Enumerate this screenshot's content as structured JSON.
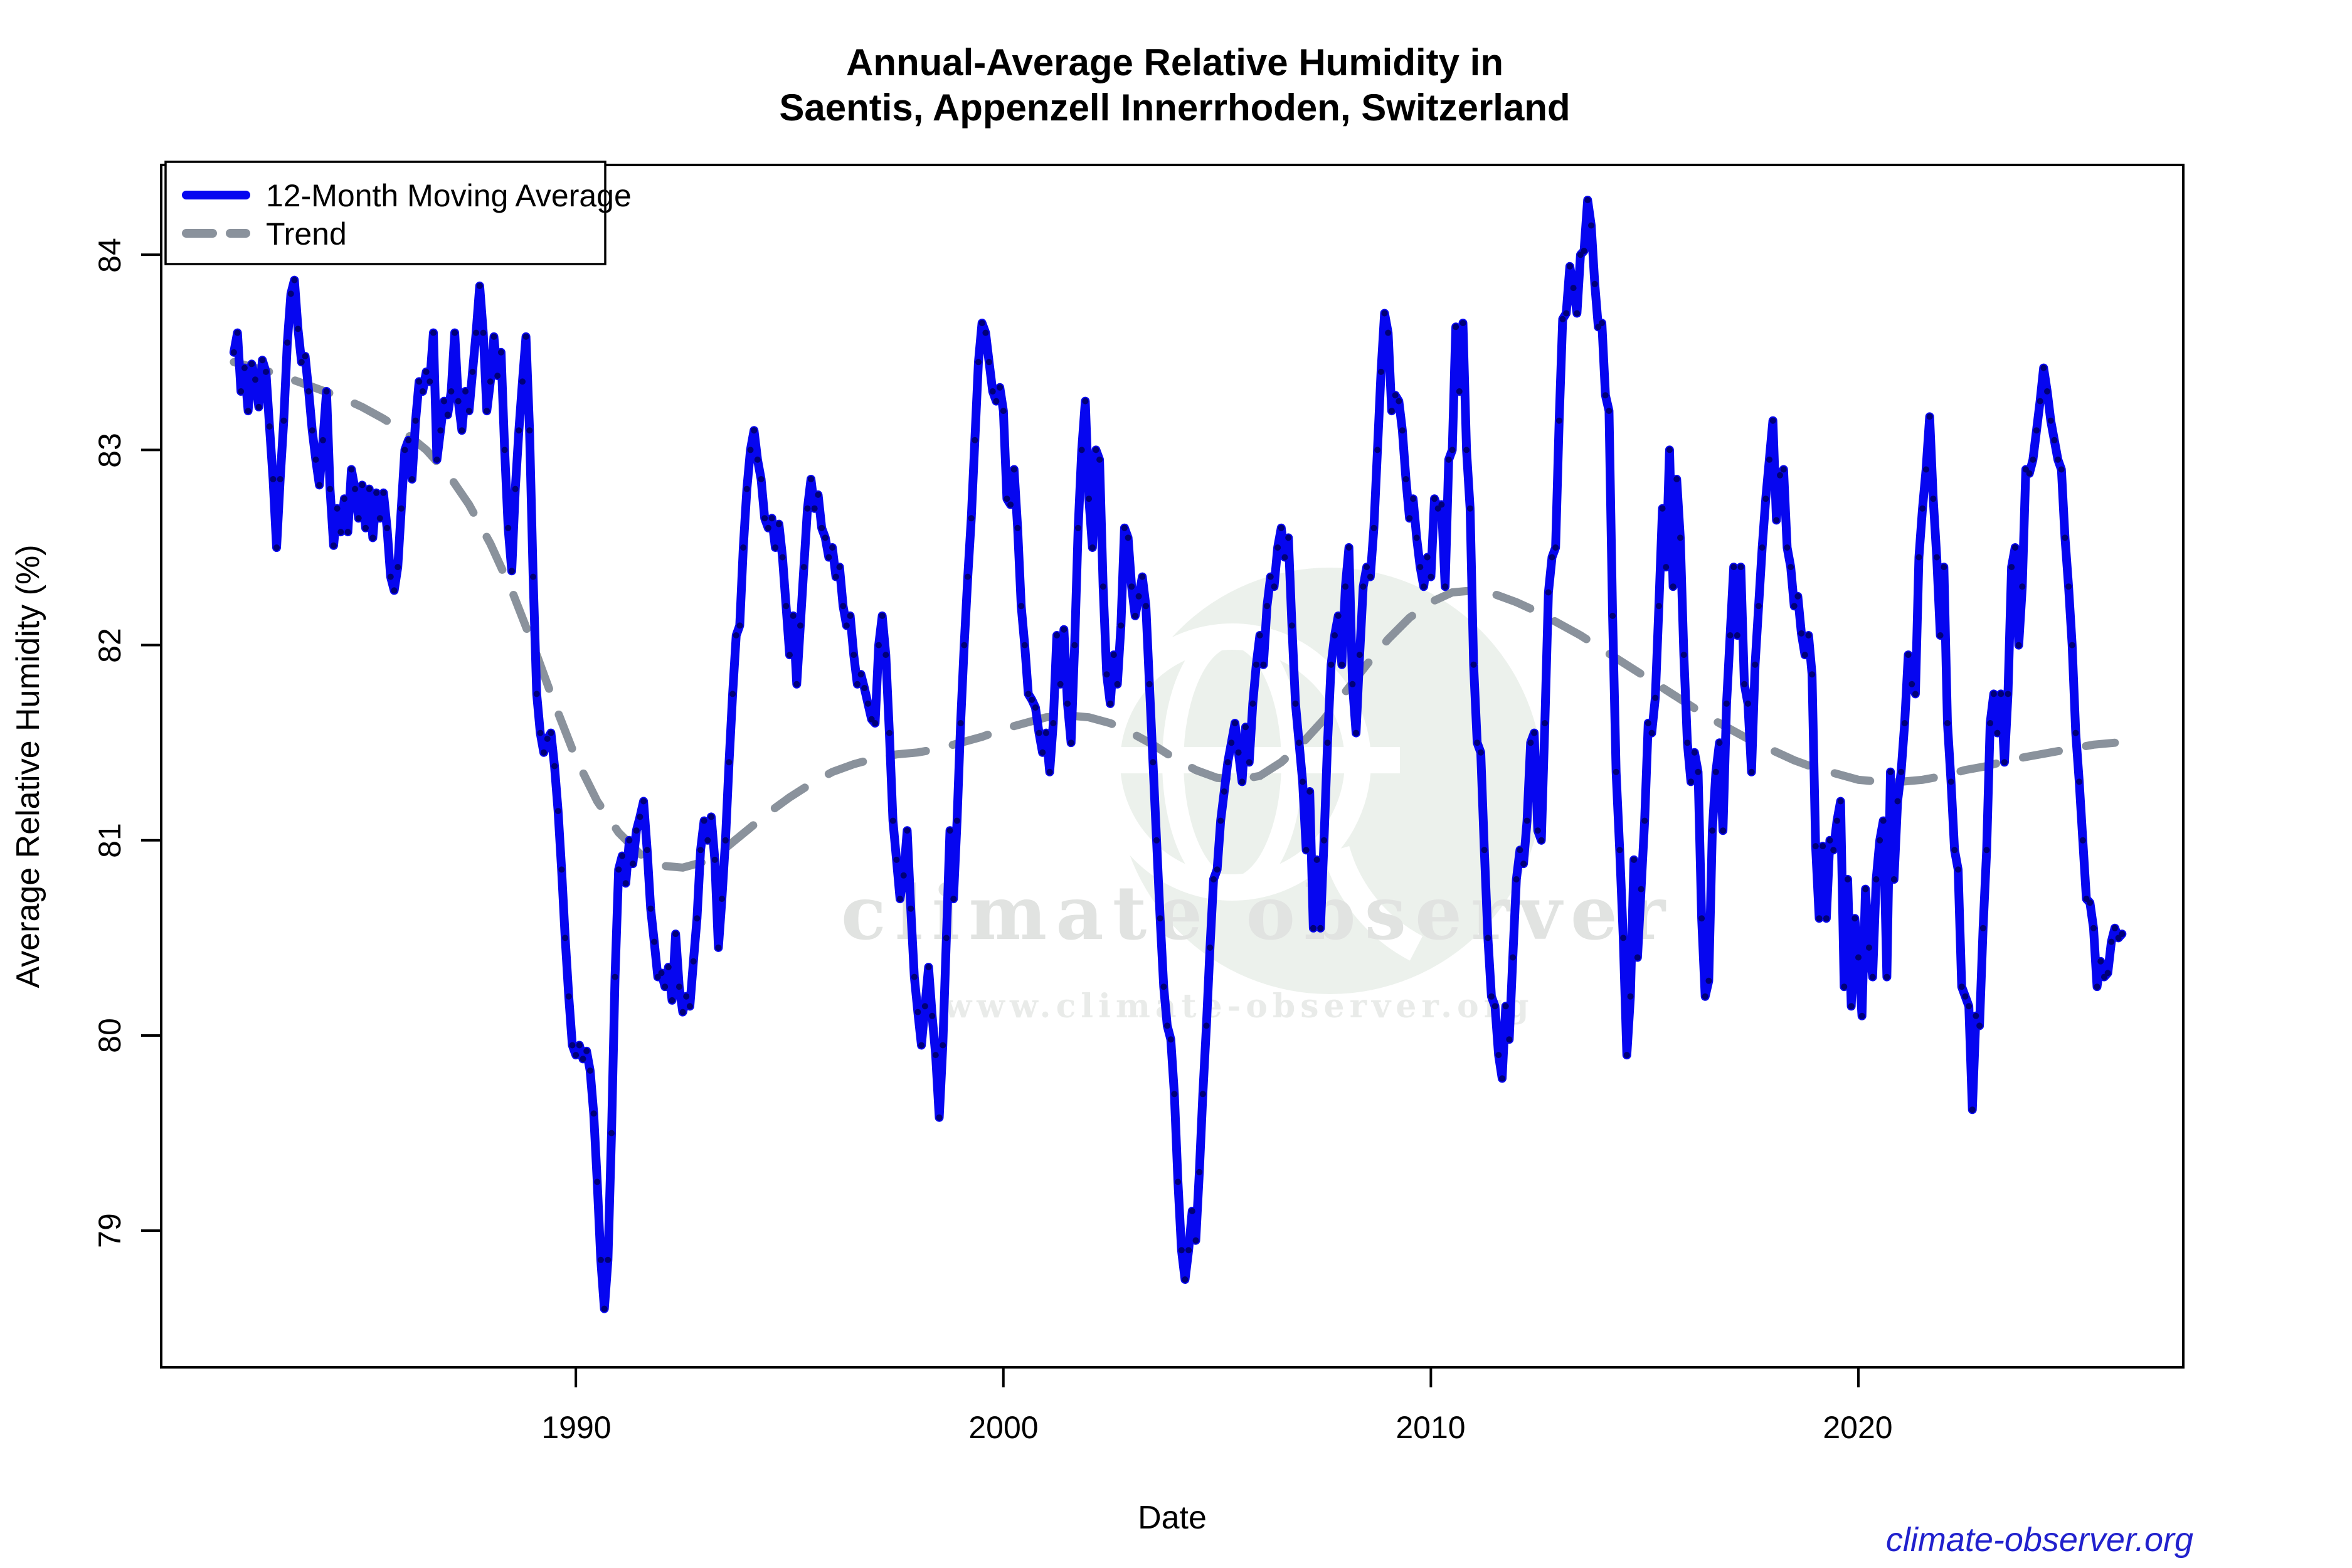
{
  "title": {
    "line1": "Annual-Average Relative Humidity in",
    "line2": "Saentis, Appenzell Innerrhoden, Switzerland"
  },
  "axes": {
    "x_label": "Date",
    "y_label": "Average Relative Humidity (%)",
    "x_tick_labels": [
      "1990",
      "2000",
      "2010",
      "2020"
    ],
    "y_tick_labels": [
      "79",
      "80",
      "81",
      "82",
      "83",
      "84"
    ]
  },
  "legend": {
    "items": [
      {
        "label": "12-Month Moving Average",
        "color": "#0606f0",
        "style": "solid"
      },
      {
        "label": "Trend",
        "color": "#8a929c",
        "style": "dashed"
      }
    ]
  },
  "watermark": {
    "brand": "climate observer",
    "url_text": "www.climate-observer.org",
    "disc_color": "#ecf1ec"
  },
  "footer": {
    "link_text": "climate-observer.org",
    "link_color": "#2121cd"
  },
  "chart_data": {
    "type": "line",
    "title": "Annual-Average Relative Humidity in Saentis, Appenzell Innerrhoden, Switzerland",
    "xlabel": "Date",
    "ylabel": "Average Relative Humidity (%)",
    "x_ticks": [
      1990,
      2000,
      2010,
      2020
    ],
    "y_ticks": [
      79,
      80,
      81,
      82,
      83,
      84
    ],
    "xlim": [
      1980.3,
      2027.6
    ],
    "ylim": [
      78.3,
      84.46
    ],
    "grid": false,
    "legend_position": "top-left",
    "series": [
      {
        "name": "12-Month Moving Average",
        "color": "#0606f0",
        "style": "solid",
        "marker_color": "#000078",
        "start_year": 1982.0,
        "step_years": 0.0833333,
        "values": [
          83.5,
          83.6,
          83.3,
          83.42,
          83.2,
          83.44,
          83.36,
          83.22,
          83.46,
          83.4,
          83.12,
          82.85,
          82.5,
          82.85,
          83.15,
          83.55,
          83.8,
          83.87,
          83.62,
          83.45,
          83.48,
          83.3,
          83.1,
          82.95,
          82.82,
          83.05,
          83.3,
          82.8,
          82.51,
          82.7,
          82.58,
          82.75,
          82.58,
          82.9,
          82.8,
          82.65,
          82.82,
          82.6,
          82.8,
          82.55,
          82.78,
          82.65,
          82.78,
          82.6,
          82.35,
          82.28,
          82.4,
          82.7,
          83.0,
          83.05,
          82.85,
          83.15,
          83.35,
          83.3,
          83.4,
          83.35,
          83.6,
          82.95,
          83.1,
          83.25,
          83.18,
          83.3,
          83.6,
          83.25,
          83.1,
          83.3,
          83.2,
          83.4,
          83.6,
          83.84,
          83.6,
          83.2,
          83.35,
          83.58,
          83.38,
          83.5,
          83.0,
          82.6,
          82.38,
          82.8,
          83.1,
          83.35,
          83.58,
          83.1,
          82.35,
          81.75,
          81.55,
          81.45,
          81.52,
          81.55,
          81.38,
          81.15,
          80.85,
          80.5,
          80.2,
          79.95,
          79.9,
          79.95,
          79.88,
          79.92,
          79.82,
          79.6,
          79.25,
          78.85,
          78.6,
          78.85,
          79.5,
          80.3,
          80.85,
          80.92,
          80.78,
          81.0,
          80.88,
          81.05,
          81.12,
          81.2,
          80.95,
          80.65,
          80.48,
          80.3,
          80.32,
          80.25,
          80.35,
          80.18,
          80.52,
          80.25,
          80.12,
          80.2,
          80.15,
          80.38,
          80.6,
          80.95,
          81.1,
          81.0,
          81.12,
          80.9,
          80.45,
          80.7,
          81.0,
          81.4,
          81.75,
          82.05,
          82.1,
          82.5,
          82.8,
          83.0,
          83.1,
          82.95,
          82.85,
          82.65,
          82.6,
          82.65,
          82.5,
          82.62,
          82.45,
          82.2,
          81.95,
          82.15,
          81.8,
          82.1,
          82.4,
          82.7,
          82.85,
          82.7,
          82.77,
          82.6,
          82.55,
          82.45,
          82.5,
          82.35,
          82.4,
          82.2,
          82.1,
          82.15,
          81.95,
          81.8,
          81.85,
          81.78,
          81.7,
          81.62,
          81.6,
          82.0,
          82.15,
          81.95,
          81.55,
          81.1,
          80.9,
          80.7,
          80.82,
          81.05,
          80.65,
          80.3,
          80.12,
          79.95,
          80.15,
          80.35,
          80.1,
          79.9,
          79.58,
          79.95,
          80.5,
          81.05,
          80.7,
          81.1,
          81.6,
          82.0,
          82.35,
          82.65,
          83.05,
          83.45,
          83.65,
          83.6,
          83.45,
          83.3,
          83.25,
          83.32,
          83.2,
          82.75,
          82.72,
          82.9,
          82.6,
          82.2,
          82.0,
          81.75,
          81.72,
          81.68,
          81.55,
          81.45,
          81.55,
          81.35,
          81.6,
          82.05,
          81.8,
          82.08,
          81.7,
          81.5,
          82.0,
          82.6,
          83.0,
          83.25,
          82.75,
          82.5,
          83.0,
          82.95,
          82.3,
          81.85,
          81.7,
          81.95,
          81.8,
          82.1,
          82.6,
          82.55,
          82.3,
          82.15,
          82.25,
          82.35,
          82.2,
          81.8,
          81.4,
          81.0,
          80.6,
          80.25,
          80.05,
          79.98,
          79.7,
          79.25,
          78.9,
          78.75,
          78.9,
          79.1,
          78.95,
          79.3,
          79.7,
          80.05,
          80.45,
          80.8,
          80.85,
          81.1,
          81.25,
          81.4,
          81.5,
          81.6,
          81.45,
          81.3,
          81.58,
          81.4,
          81.7,
          81.9,
          82.05,
          81.9,
          82.2,
          82.35,
          82.3,
          82.5,
          82.6,
          82.45,
          82.55,
          82.1,
          81.7,
          81.5,
          81.3,
          80.95,
          81.25,
          80.55,
          80.9,
          80.55,
          81.0,
          81.5,
          81.9,
          82.05,
          82.15,
          81.9,
          82.3,
          82.5,
          81.8,
          81.55,
          81.95,
          82.3,
          82.4,
          82.35,
          82.6,
          83.0,
          83.4,
          83.7,
          83.6,
          83.2,
          83.28,
          83.25,
          83.1,
          82.85,
          82.65,
          82.75,
          82.55,
          82.4,
          82.3,
          82.45,
          82.35,
          82.75,
          82.7,
          82.72,
          82.3,
          82.95,
          83.0,
          83.63,
          83.3,
          83.65,
          83.0,
          82.7,
          81.9,
          81.5,
          81.45,
          80.95,
          80.5,
          80.2,
          80.15,
          79.9,
          79.78,
          80.15,
          79.98,
          80.4,
          80.8,
          80.95,
          80.88,
          81.1,
          81.5,
          81.55,
          81.05,
          81.0,
          81.6,
          82.27,
          82.45,
          82.5,
          83.15,
          83.67,
          83.7,
          83.94,
          83.83,
          83.7,
          84.0,
          84.02,
          84.28,
          84.15,
          83.85,
          83.63,
          83.65,
          83.28,
          83.2,
          82.15,
          81.35,
          80.95,
          80.5,
          79.9,
          80.2,
          80.9,
          80.4,
          80.75,
          81.1,
          81.6,
          81.55,
          81.73,
          82.2,
          82.7,
          82.4,
          83.0,
          82.3,
          82.85,
          82.55,
          81.95,
          81.5,
          81.3,
          81.45,
          81.35,
          80.6,
          80.2,
          80.28,
          81.05,
          81.35,
          81.5,
          81.05,
          81.7,
          82.05,
          82.4,
          82.05,
          82.4,
          81.8,
          81.7,
          81.35,
          81.9,
          82.2,
          82.5,
          82.75,
          82.95,
          83.15,
          82.64,
          82.87,
          82.9,
          82.5,
          82.4,
          82.2,
          82.25,
          82.06,
          81.95,
          82.05,
          81.85,
          80.97,
          80.6,
          80.97,
          80.6,
          81.0,
          80.95,
          81.1,
          81.2,
          80.25,
          80.8,
          80.15,
          80.6,
          80.4,
          80.1,
          80.75,
          80.45,
          80.3,
          80.8,
          81.0,
          81.1,
          80.3,
          81.35,
          80.8,
          81.2,
          81.35,
          81.6,
          81.95,
          81.8,
          81.75,
          82.45,
          82.7,
          82.9,
          83.17,
          82.75,
          82.45,
          82.05,
          82.4,
          81.6,
          81.3,
          80.95,
          80.85,
          80.25,
          80.2,
          80.15,
          79.62,
          80.1,
          80.05,
          80.55,
          80.95,
          81.6,
          81.75,
          81.55,
          81.75,
          81.4,
          81.75,
          82.4,
          82.5,
          82.0,
          82.3,
          82.9,
          82.88,
          82.95,
          83.1,
          83.25,
          83.42,
          83.3,
          83.15,
          83.05,
          82.95,
          82.9,
          82.55,
          82.3,
          82.0,
          81.55,
          81.3,
          81.0,
          80.7,
          80.68,
          80.55,
          80.25,
          80.38,
          80.3,
          80.32,
          80.48,
          80.55,
          80.5,
          80.52
        ]
      },
      {
        "name": "Trend",
        "color": "#8a929c",
        "style": "dashed",
        "start_year": 1982.0,
        "step_years": 0.5,
        "values": [
          83.45,
          83.42,
          83.39,
          83.35,
          83.31,
          83.27,
          83.22,
          83.16,
          83.09,
          83.0,
          82.88,
          82.72,
          82.52,
          82.28,
          82.0,
          81.7,
          81.42,
          81.2,
          81.04,
          80.93,
          80.87,
          80.86,
          80.89,
          80.96,
          81.05,
          81.14,
          81.22,
          81.29,
          81.35,
          81.39,
          81.42,
          81.44,
          81.45,
          81.47,
          81.5,
          81.53,
          81.57,
          81.6,
          81.63,
          81.64,
          81.63,
          81.6,
          81.55,
          81.49,
          81.42,
          81.36,
          81.32,
          81.31,
          81.33,
          81.4,
          81.5,
          81.62,
          81.76,
          81.9,
          82.03,
          82.14,
          82.22,
          82.27,
          82.28,
          82.26,
          82.22,
          82.17,
          82.11,
          82.05,
          81.98,
          81.91,
          81.84,
          81.77,
          81.7,
          81.63,
          81.57,
          81.51,
          81.46,
          81.41,
          81.37,
          81.34,
          81.31,
          81.3,
          81.3,
          81.31,
          81.33,
          81.36,
          81.38,
          81.41,
          81.43,
          81.45,
          81.47,
          81.49,
          81.5
        ]
      }
    ]
  }
}
